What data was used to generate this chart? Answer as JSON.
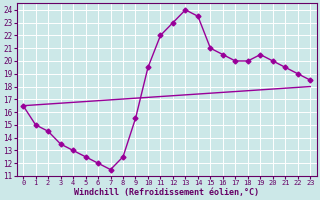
{
  "line1_x": [
    0,
    1,
    2,
    3,
    4,
    5,
    6,
    7,
    8,
    9,
    10,
    11,
    12,
    13,
    14,
    15,
    16,
    17,
    18,
    19,
    20,
    21,
    22,
    23
  ],
  "line1_y": [
    16.5,
    15.0,
    14.5,
    13.5,
    13.0,
    12.5,
    12.0,
    11.5,
    12.5,
    15.5,
    19.5,
    22.0,
    23.0,
    24.0,
    23.5,
    21.0,
    20.5,
    20.0,
    20.0,
    20.5,
    20.0,
    19.5,
    19.0,
    18.5
  ],
  "line2_x": [
    0,
    23
  ],
  "line2_y": [
    16.5,
    18.0
  ],
  "line_color": "#990099",
  "bg_color": "#cce8e8",
  "grid_color": "#b0d8d8",
  "xlabel": "Windchill (Refroidissement éolien,°C)",
  "ylim": [
    11,
    24.5
  ],
  "xlim": [
    -0.5,
    23.5
  ],
  "yticks": [
    11,
    12,
    13,
    14,
    15,
    16,
    17,
    18,
    19,
    20,
    21,
    22,
    23,
    24
  ],
  "xticks": [
    0,
    1,
    2,
    3,
    4,
    5,
    6,
    7,
    8,
    9,
    10,
    11,
    12,
    13,
    14,
    15,
    16,
    17,
    18,
    19,
    20,
    21,
    22,
    23
  ],
  "marker": "D",
  "markersize": 2.5,
  "linewidth": 1.0,
  "tick_fontsize": 5.5,
  "xlabel_fontsize": 6.0
}
